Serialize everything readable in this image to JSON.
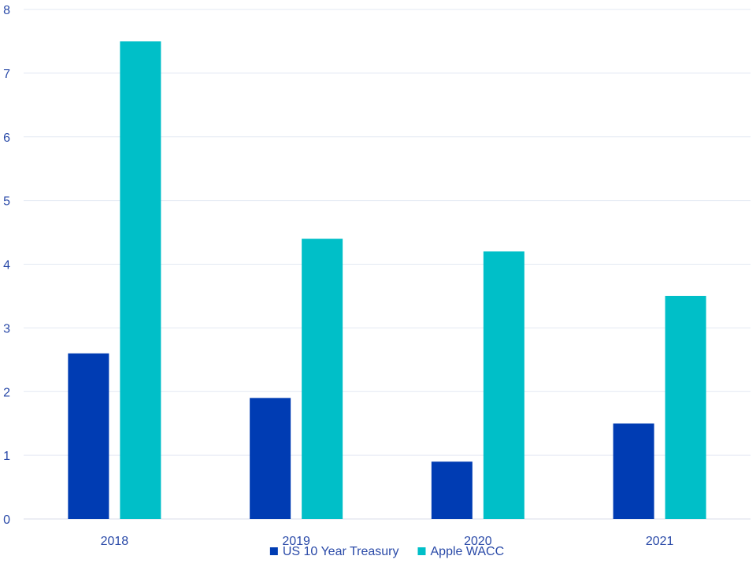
{
  "chart_data": {
    "type": "bar",
    "categories": [
      "2018",
      "2019",
      "2020",
      "2021"
    ],
    "series": [
      {
        "name": "US 10 Year Treasury",
        "values": [
          2.6,
          1.9,
          0.9,
          1.5
        ],
        "color": "#003cb3"
      },
      {
        "name": "Apple WACC",
        "values": [
          7.5,
          4.4,
          4.2,
          3.5
        ],
        "color": "#00bfc8"
      }
    ],
    "title": "",
    "xlabel": "",
    "ylabel": "",
    "ylim": [
      0,
      8
    ],
    "yticks": [
      "0",
      "1",
      "2",
      "3",
      "4",
      "5",
      "6",
      "7",
      "8"
    ],
    "grid": true,
    "legend_position": "bottom-center"
  }
}
